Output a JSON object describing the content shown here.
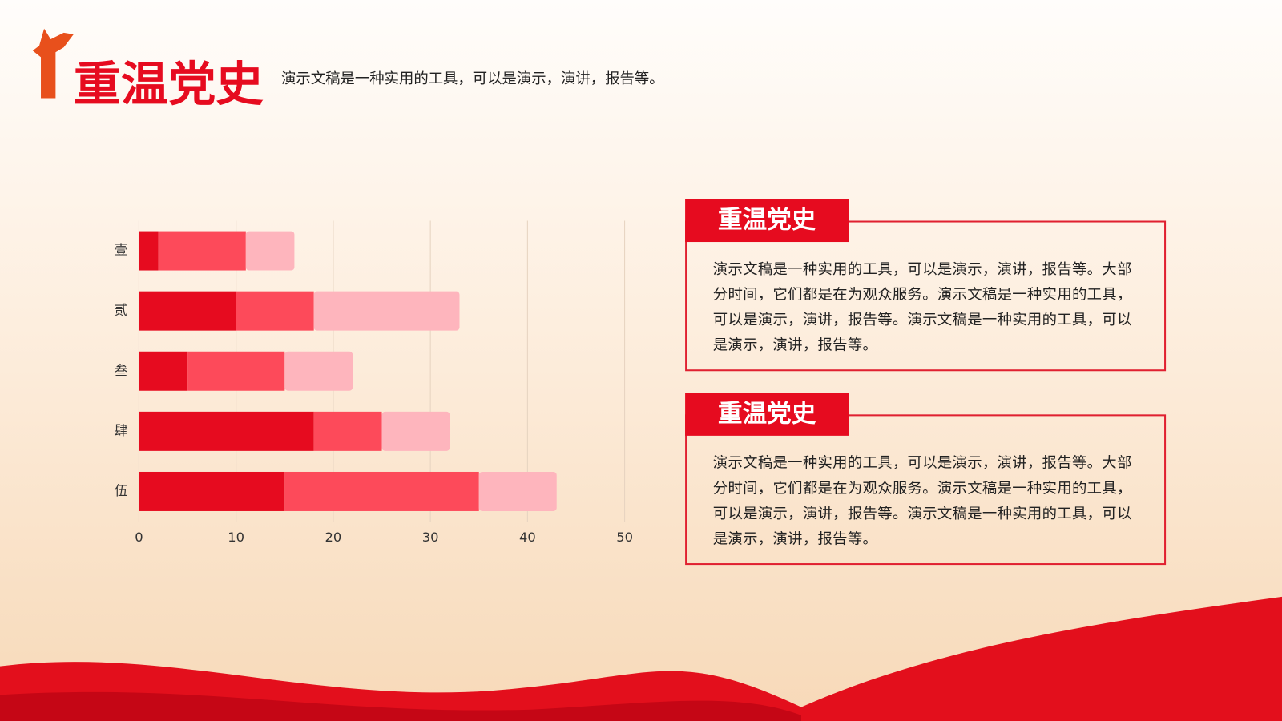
{
  "header": {
    "title": "重温党史",
    "subtitle": "演示文稿是一种实用的工具，可以是演示，演讲，报告等。"
  },
  "panels": [
    {
      "title": "重温党史",
      "text": "演示文稿是一种实用的工具，可以是演示，演讲，报告等。大部分时间，它们都是在为观众服务。演示文稿是一种实用的工具，可以是演示，演讲，报告等。演示文稿是一种实用的工具，可以是演示，演讲，报告等。"
    },
    {
      "title": "重温党史",
      "text": "演示文稿是一种实用的工具，可以是演示，演讲，报告等。大部分时间，它们都是在为观众服务。演示文稿是一种实用的工具，可以是演示，演讲，报告等。演示文稿是一种实用的工具，可以是演示，演讲，报告等。"
    }
  ],
  "chart_data": {
    "type": "stacked_barh",
    "categories": [
      "壹",
      "贰",
      "叁",
      "肆",
      "伍"
    ],
    "series": [
      {
        "color": "#e60b1f",
        "values": [
          2,
          10,
          5,
          18,
          15
        ]
      },
      {
        "color": "#fd4a5a",
        "values": [
          9,
          8,
          10,
          7,
          20
        ]
      },
      {
        "color": "#feb5bd",
        "values": [
          5,
          15,
          7,
          7,
          8
        ]
      }
    ],
    "xlim": [
      0,
      50
    ],
    "xticks": [
      0,
      10,
      20,
      30,
      40,
      50
    ],
    "grid": true
  }
}
